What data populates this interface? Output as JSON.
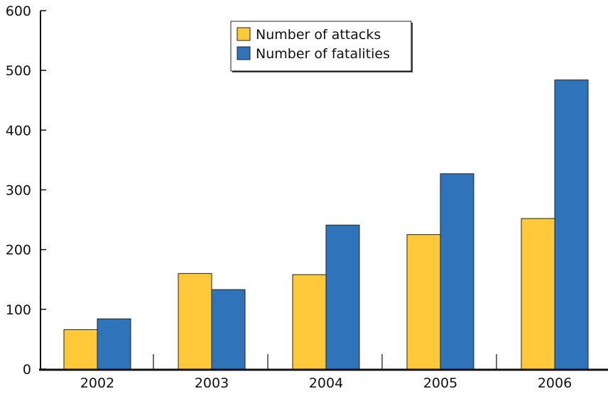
{
  "chart_data": {
    "type": "bar",
    "categories": [
      "2002",
      "2003",
      "2004",
      "2005",
      "2006"
    ],
    "series": [
      {
        "name": "Number of attacks",
        "values": [
          66,
          160,
          158,
          225,
          252
        ],
        "color": "#FFC939"
      },
      {
        "name": "Number of fatalities",
        "values": [
          84,
          133,
          241,
          327,
          484
        ],
        "color": "#2F74BB"
      }
    ],
    "ylim": [
      0,
      600
    ],
    "yticks": [
      0,
      100,
      200,
      300,
      400,
      500,
      600
    ],
    "xlabel": "",
    "ylabel": "",
    "title": "",
    "legend": {
      "position": "top-center"
    },
    "grid": false
  }
}
